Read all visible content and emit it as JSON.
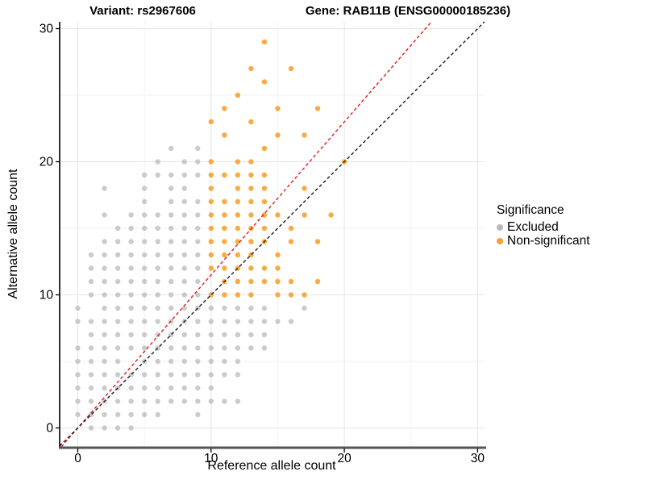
{
  "header": {
    "variant_title": "Variant: rs2967606",
    "gene_title": "Gene: RAB11B (ENSG00000185236)"
  },
  "axes": {
    "x_label": "Reference allele count",
    "y_label": "Alternative allele count",
    "x_ticks": [
      0,
      10,
      20,
      30
    ],
    "y_ticks": [
      0,
      10,
      20,
      30
    ],
    "x_minor": [
      5,
      15,
      25
    ],
    "y_minor": [
      5,
      15,
      25
    ]
  },
  "legend": {
    "title": "Significance",
    "items": [
      {
        "label": "Excluded",
        "color": "#b9b9b9"
      },
      {
        "label": "Non-significant",
        "color": "#f9a12e"
      }
    ]
  },
  "colors": {
    "excluded": "#b9b9b9",
    "nonsignificant": "#f9a12e",
    "identity_line": "#1a1a1a",
    "ratio_line": "#e41a1c",
    "grid_major": "#e6e6e6",
    "grid_minor": "#f2f2f2",
    "axis_y": "#000000",
    "axis_x": "#555555",
    "background": "#ffffff"
  },
  "chart_data": {
    "type": "scatter",
    "title": "Variant: rs2967606 — Gene: RAB11B (ENSG00000185236)",
    "xlabel": "Reference allele count",
    "ylabel": "Alternative allele count",
    "xlim": [
      -1.4,
      30.5
    ],
    "ylim": [
      -1.5,
      30.6
    ],
    "grid": "major at 0/10/20/30, minor at 5/15/25",
    "legend_position": "right",
    "lines": [
      {
        "name": "identity",
        "style": "dashed",
        "color": "#1a1a1a",
        "slope": 1,
        "intercept": 0
      },
      {
        "name": "expected-ratio",
        "style": "dashed",
        "color": "#e41a1c",
        "slope": 1.15,
        "intercept": 0
      }
    ],
    "series": [
      {
        "name": "Excluded",
        "color": "#b9b9b9",
        "points": [
          [
            1,
            0
          ],
          [
            2,
            0
          ],
          [
            3,
            0
          ],
          [
            4,
            0
          ],
          [
            0,
            1
          ],
          [
            1,
            1
          ],
          [
            2,
            1
          ],
          [
            3,
            1
          ],
          [
            4,
            1
          ],
          [
            5,
            1
          ],
          [
            6,
            1
          ],
          [
            9,
            1
          ],
          [
            0,
            2
          ],
          [
            1,
            2
          ],
          [
            2,
            2
          ],
          [
            3,
            2
          ],
          [
            4,
            2
          ],
          [
            5,
            2
          ],
          [
            6,
            2
          ],
          [
            7,
            2
          ],
          [
            8,
            2
          ],
          [
            9,
            2
          ],
          [
            10,
            2
          ],
          [
            11,
            2
          ],
          [
            12,
            2
          ],
          [
            0,
            3
          ],
          [
            1,
            3
          ],
          [
            2,
            3
          ],
          [
            3,
            3
          ],
          [
            4,
            3
          ],
          [
            5,
            3
          ],
          [
            6,
            3
          ],
          [
            7,
            3
          ],
          [
            8,
            3
          ],
          [
            9,
            3
          ],
          [
            10,
            3
          ],
          [
            0,
            4
          ],
          [
            1,
            4
          ],
          [
            2,
            4
          ],
          [
            3,
            4
          ],
          [
            4,
            4
          ],
          [
            5,
            4
          ],
          [
            6,
            4
          ],
          [
            7,
            4
          ],
          [
            8,
            4
          ],
          [
            9,
            4
          ],
          [
            10,
            4
          ],
          [
            11,
            4
          ],
          [
            12,
            4
          ],
          [
            0,
            5
          ],
          [
            1,
            5
          ],
          [
            2,
            5
          ],
          [
            3,
            5
          ],
          [
            5,
            5
          ],
          [
            6,
            5
          ],
          [
            7,
            5
          ],
          [
            8,
            5
          ],
          [
            9,
            5
          ],
          [
            10,
            5
          ],
          [
            11,
            5
          ],
          [
            12,
            5
          ],
          [
            0,
            6
          ],
          [
            1,
            6
          ],
          [
            2,
            6
          ],
          [
            3,
            6
          ],
          [
            4,
            6
          ],
          [
            5,
            6
          ],
          [
            6,
            6
          ],
          [
            7,
            6
          ],
          [
            8,
            6
          ],
          [
            9,
            6
          ],
          [
            10,
            6
          ],
          [
            11,
            6
          ],
          [
            12,
            6
          ],
          [
            13,
            6
          ],
          [
            14,
            6
          ],
          [
            1,
            7
          ],
          [
            2,
            7
          ],
          [
            3,
            7
          ],
          [
            4,
            7
          ],
          [
            5,
            7
          ],
          [
            6,
            7
          ],
          [
            7,
            7
          ],
          [
            8,
            7
          ],
          [
            9,
            7
          ],
          [
            10,
            7
          ],
          [
            11,
            7
          ],
          [
            12,
            7
          ],
          [
            13,
            7
          ],
          [
            14,
            7
          ],
          [
            0,
            8
          ],
          [
            1,
            8
          ],
          [
            2,
            8
          ],
          [
            3,
            8
          ],
          [
            4,
            8
          ],
          [
            5,
            8
          ],
          [
            6,
            8
          ],
          [
            7,
            8
          ],
          [
            8,
            8
          ],
          [
            9,
            8
          ],
          [
            10,
            8
          ],
          [
            11,
            8
          ],
          [
            12,
            8
          ],
          [
            13,
            8
          ],
          [
            14,
            8
          ],
          [
            15,
            8
          ],
          [
            16,
            8
          ],
          [
            0,
            9
          ],
          [
            2,
            9
          ],
          [
            3,
            9
          ],
          [
            4,
            9
          ],
          [
            5,
            9
          ],
          [
            6,
            9
          ],
          [
            7,
            9
          ],
          [
            8,
            9
          ],
          [
            9,
            9
          ],
          [
            10,
            9
          ],
          [
            11,
            9
          ],
          [
            12,
            9
          ],
          [
            13,
            9
          ],
          [
            14,
            9
          ],
          [
            17,
            9
          ],
          [
            1,
            10
          ],
          [
            2,
            10
          ],
          [
            3,
            10
          ],
          [
            4,
            10
          ],
          [
            5,
            10
          ],
          [
            6,
            10
          ],
          [
            7,
            10
          ],
          [
            8,
            10
          ],
          [
            9,
            10
          ],
          [
            1,
            11
          ],
          [
            2,
            11
          ],
          [
            3,
            11
          ],
          [
            4,
            11
          ],
          [
            5,
            11
          ],
          [
            6,
            11
          ],
          [
            7,
            11
          ],
          [
            8,
            11
          ],
          [
            9,
            11
          ],
          [
            1,
            12
          ],
          [
            2,
            12
          ],
          [
            3,
            12
          ],
          [
            4,
            12
          ],
          [
            5,
            12
          ],
          [
            6,
            12
          ],
          [
            7,
            12
          ],
          [
            8,
            12
          ],
          [
            9,
            12
          ],
          [
            1,
            13
          ],
          [
            2,
            13
          ],
          [
            3,
            13
          ],
          [
            4,
            13
          ],
          [
            5,
            13
          ],
          [
            6,
            13
          ],
          [
            7,
            13
          ],
          [
            8,
            13
          ],
          [
            9,
            13
          ],
          [
            2,
            14
          ],
          [
            3,
            14
          ],
          [
            4,
            14
          ],
          [
            5,
            14
          ],
          [
            6,
            14
          ],
          [
            7,
            14
          ],
          [
            8,
            14
          ],
          [
            9,
            14
          ],
          [
            3,
            15
          ],
          [
            4,
            15
          ],
          [
            5,
            15
          ],
          [
            6,
            15
          ],
          [
            7,
            15
          ],
          [
            8,
            15
          ],
          [
            9,
            15
          ],
          [
            2,
            16
          ],
          [
            4,
            16
          ],
          [
            5,
            16
          ],
          [
            6,
            16
          ],
          [
            7,
            16
          ],
          [
            8,
            16
          ],
          [
            9,
            16
          ],
          [
            5,
            17
          ],
          [
            7,
            17
          ],
          [
            8,
            17
          ],
          [
            9,
            17
          ],
          [
            2,
            18
          ],
          [
            5,
            18
          ],
          [
            7,
            18
          ],
          [
            8,
            18
          ],
          [
            5,
            19
          ],
          [
            6,
            19
          ],
          [
            7,
            19
          ],
          [
            8,
            19
          ],
          [
            9,
            19
          ],
          [
            6,
            20
          ],
          [
            8,
            20
          ],
          [
            9,
            20
          ],
          [
            7,
            21
          ],
          [
            9,
            21
          ]
        ]
      },
      {
        "name": "Non-significant",
        "color": "#f9a12e",
        "points": [
          [
            10,
            10
          ],
          [
            11,
            10
          ],
          [
            12,
            10
          ],
          [
            13,
            10
          ],
          [
            15,
            10
          ],
          [
            16,
            10
          ],
          [
            17,
            10
          ],
          [
            11,
            11
          ],
          [
            12,
            11
          ],
          [
            13,
            11
          ],
          [
            14,
            11
          ],
          [
            15,
            11
          ],
          [
            16,
            11
          ],
          [
            18,
            11
          ],
          [
            10,
            12
          ],
          [
            11,
            12
          ],
          [
            12,
            12
          ],
          [
            13,
            12
          ],
          [
            14,
            12
          ],
          [
            15,
            12
          ],
          [
            10,
            13
          ],
          [
            11,
            13
          ],
          [
            12,
            13
          ],
          [
            13,
            13
          ],
          [
            15,
            13
          ],
          [
            10,
            14
          ],
          [
            11,
            14
          ],
          [
            12,
            14
          ],
          [
            13,
            14
          ],
          [
            14,
            14
          ],
          [
            16,
            14
          ],
          [
            18,
            14
          ],
          [
            10,
            15
          ],
          [
            11,
            15
          ],
          [
            12,
            15
          ],
          [
            13,
            15
          ],
          [
            14,
            15
          ],
          [
            16,
            15
          ],
          [
            10,
            16
          ],
          [
            11,
            16
          ],
          [
            12,
            16
          ],
          [
            13,
            16
          ],
          [
            14,
            16
          ],
          [
            15,
            16
          ],
          [
            17,
            16
          ],
          [
            19,
            16
          ],
          [
            10,
            17
          ],
          [
            11,
            17
          ],
          [
            12,
            17
          ],
          [
            13,
            17
          ],
          [
            14,
            17
          ],
          [
            10,
            18
          ],
          [
            12,
            18
          ],
          [
            13,
            18
          ],
          [
            14,
            18
          ],
          [
            17,
            18
          ],
          [
            10,
            19
          ],
          [
            11,
            19
          ],
          [
            12,
            19
          ],
          [
            13,
            19
          ],
          [
            14,
            19
          ],
          [
            10,
            20
          ],
          [
            12,
            20
          ],
          [
            13,
            20
          ],
          [
            20,
            20
          ],
          [
            14,
            21
          ],
          [
            11,
            22
          ],
          [
            15,
            22
          ],
          [
            17,
            22
          ],
          [
            10,
            23
          ],
          [
            13,
            23
          ],
          [
            11,
            24
          ],
          [
            15,
            24
          ],
          [
            18,
            24
          ],
          [
            12,
            25
          ],
          [
            14,
            26
          ],
          [
            13,
            27
          ],
          [
            16,
            27
          ],
          [
            14,
            29
          ]
        ]
      }
    ]
  }
}
